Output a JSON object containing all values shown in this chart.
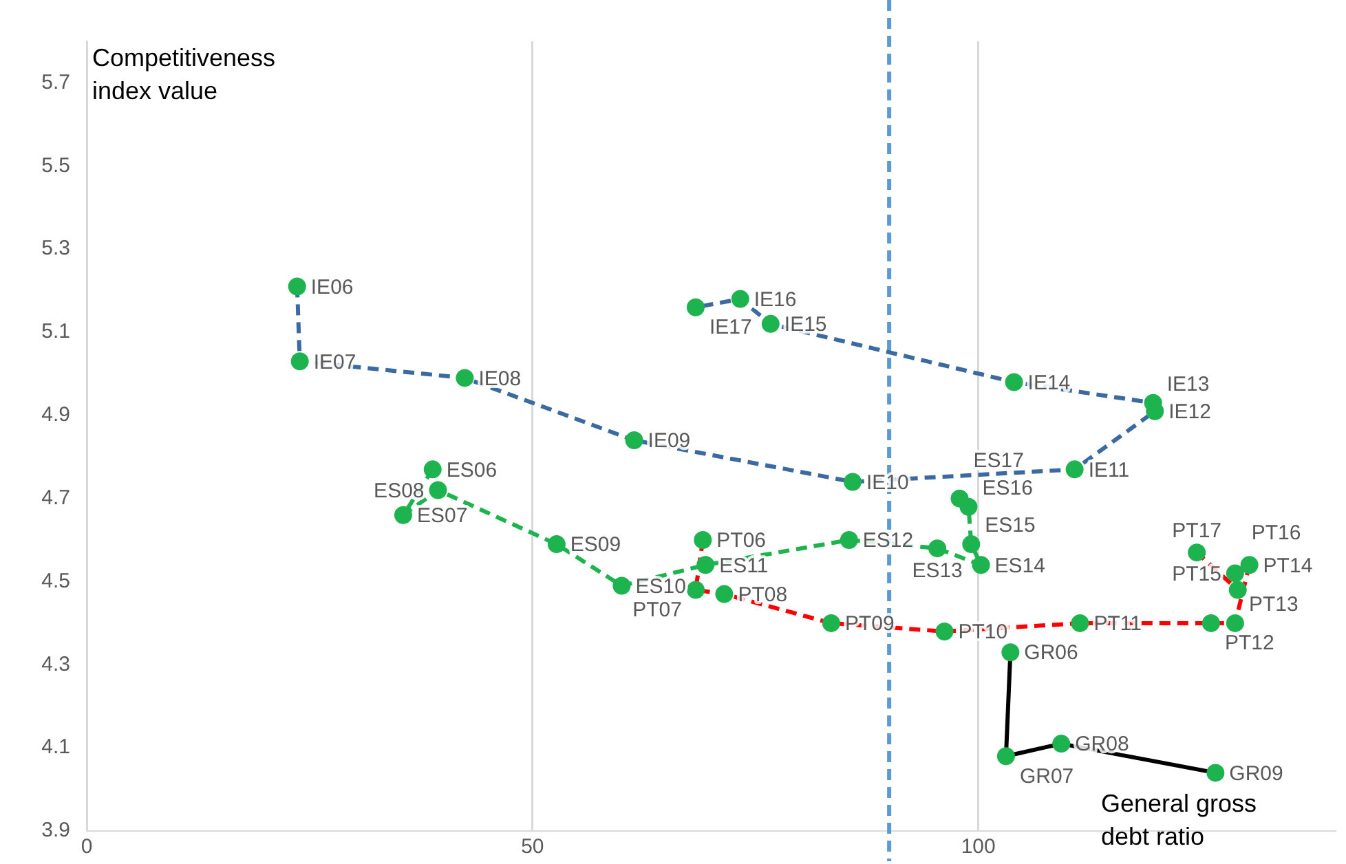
{
  "chart_data": {
    "type": "line",
    "xlabel": "General gross debt ratio",
    "ylabel": "Competitiveness index value",
    "xlim": [
      0,
      140
    ],
    "xticks": [
      0,
      50,
      100
    ],
    "ylim": [
      3.9,
      5.8
    ],
    "yticks": [
      3.9,
      4.1,
      4.3,
      4.5,
      4.7,
      4.9,
      5.1,
      5.3,
      5.5,
      5.7
    ],
    "grid": "x",
    "legend": false,
    "marker": "circle",
    "ref_lines": [
      {
        "axis": "x",
        "value": 90,
        "color": "#5b9bd5",
        "line_style": "dashed"
      }
    ],
    "series": [
      {
        "color": "#3b6aa0",
        "line_style": "dashed",
        "x": [
          23.6,
          23.9,
          42.4,
          61.4,
          85.9,
          110.8,
          119.8,
          119.6,
          104,
          76.7,
          73.3,
          68.3
        ],
        "values": [
          5.21,
          5.03,
          4.99,
          4.84,
          4.74,
          4.77,
          4.91,
          4.93,
          4.98,
          5.12,
          5.18,
          5.16
        ],
        "colors": [
          "#1db34f",
          "#1db34f",
          "#1db34f",
          "#1db34f",
          "#1db34f",
          "#1db34f",
          "#1db34f",
          "#1db34f",
          "#1db34f",
          "#1db34f",
          "#1db34f",
          "#1db34f"
        ]
      },
      {
        "color": "#1db34f",
        "line_style": "dashed",
        "x": [
          38.8,
          35.5,
          39.4,
          52.7,
          60.0,
          69.4,
          85.5,
          95.4,
          100.3,
          99.2,
          98.9,
          97.9
        ],
        "values": [
          4.77,
          4.66,
          4.72,
          4.59,
          4.49,
          4.54,
          4.6,
          4.58,
          4.54,
          4.59,
          4.68,
          4.7
        ],
        "colors": [
          "#1db34f",
          "#1db34f",
          "#1db34f",
          "#1db34f",
          "#1db34f",
          "#1db34f",
          "#1db34f",
          "#1db34f",
          "#1db34f",
          "#1db34f",
          "#1db34f",
          "#1db34f"
        ]
      },
      {
        "color": "#ff0000",
        "line_style": "dashed",
        "x": [
          69.1,
          68.3,
          71.5,
          83.5,
          96.2,
          111.4,
          126.1,
          128.8,
          130.4,
          128.8,
          129.1,
          124.5
        ],
        "values": [
          4.6,
          4.48,
          4.47,
          4.4,
          4.38,
          4.4,
          4.4,
          4.4,
          4.54,
          4.52,
          4.48,
          4.57
        ],
        "colors": [
          "#1db34f",
          "#1db34f",
          "#1db34f",
          "#1db34f",
          "#1db34f",
          "#1db34f",
          "#1db34f",
          "#1db34f",
          "#1db34f",
          "#1db34f",
          "#1db34f",
          "#1db34f"
        ]
      },
      {
        "color": "#000000",
        "line_style": "solid",
        "x": [
          103.6,
          103.1,
          109.3,
          126.6
        ],
        "values": [
          4.33,
          4.08,
          4.11,
          4.04
        ],
        "colors": [
          "#1db34f",
          "#1db34f",
          "#1db34f",
          "#1db34f"
        ]
      }
    ],
    "annotations": [
      {
        "text": "IE06",
        "x": 23.6,
        "y": 5.21
      },
      {
        "text": "IE07",
        "x": 23.9,
        "y": 5.03
      },
      {
        "text": "IE08",
        "x": 42.4,
        "y": 4.99
      },
      {
        "text": "IE09",
        "x": 61.4,
        "y": 4.84
      },
      {
        "text": "IE10",
        "x": 85.9,
        "y": 4.74
      },
      {
        "text": "IE11",
        "x": 110.8,
        "y": 4.77
      },
      {
        "text": "IE12",
        "x": 119.8,
        "y": 4.91
      },
      {
        "text": "IE13",
        "x": 119.6,
        "y": 4.93
      },
      {
        "text": "IE14",
        "x": 104,
        "y": 4.98
      },
      {
        "text": "IE15",
        "x": 76.7,
        "y": 5.12
      },
      {
        "text": "IE16",
        "x": 73.3,
        "y": 5.18
      },
      {
        "text": "IE17",
        "x": 68.3,
        "y": 5.16
      },
      {
        "text": "ES06",
        "x": 38.8,
        "y": 4.77
      },
      {
        "text": "ES07",
        "x": 35.5,
        "y": 4.66
      },
      {
        "text": "ES08",
        "x": 39.4,
        "y": 4.72
      },
      {
        "text": "ES09",
        "x": 52.7,
        "y": 4.59
      },
      {
        "text": "ES10",
        "x": 60.0,
        "y": 4.49
      },
      {
        "text": "ES11",
        "x": 69.4,
        "y": 4.54
      },
      {
        "text": "ES12",
        "x": 85.5,
        "y": 4.6
      },
      {
        "text": "ES13",
        "x": 95.4,
        "y": 4.58
      },
      {
        "text": "ES14",
        "x": 100.3,
        "y": 4.54
      },
      {
        "text": "ES15",
        "x": 99.2,
        "y": 4.59
      },
      {
        "text": "ES16",
        "x": 98.9,
        "y": 4.68
      },
      {
        "text": "ES17",
        "x": 97.9,
        "y": 4.7
      },
      {
        "text": "PT06",
        "x": 69.1,
        "y": 4.6
      },
      {
        "text": "PT07",
        "x": 68.3,
        "y": 4.48
      },
      {
        "text": "PT08",
        "x": 71.5,
        "y": 4.47
      },
      {
        "text": "PT09",
        "x": 83.5,
        "y": 4.4
      },
      {
        "text": "PT10",
        "x": 96.2,
        "y": 4.38
      },
      {
        "text": "PT11",
        "x": 111.4,
        "y": 4.4
      },
      {
        "text": "PT12",
        "x": 126.1,
        "y": 4.4
      },
      {
        "text": "PT13",
        "x": 128.8,
        "y": 4.4
      },
      {
        "text": "PT14",
        "x": 130.4,
        "y": 4.54
      },
      {
        "text": "PT15",
        "x": 128.8,
        "y": 4.52
      },
      {
        "text": "PT16",
        "x": 129.1,
        "y": 4.48
      },
      {
        "text": "PT17",
        "x": 124.5,
        "y": 4.57
      },
      {
        "text": "GR06",
        "x": 103.6,
        "y": 4.33
      },
      {
        "text": "GR07",
        "x": 103.1,
        "y": 4.08
      },
      {
        "text": "GR08",
        "x": 109.3,
        "y": 4.11
      },
      {
        "text": "GR09",
        "x": 126.6,
        "y": 4.04
      }
    ]
  }
}
